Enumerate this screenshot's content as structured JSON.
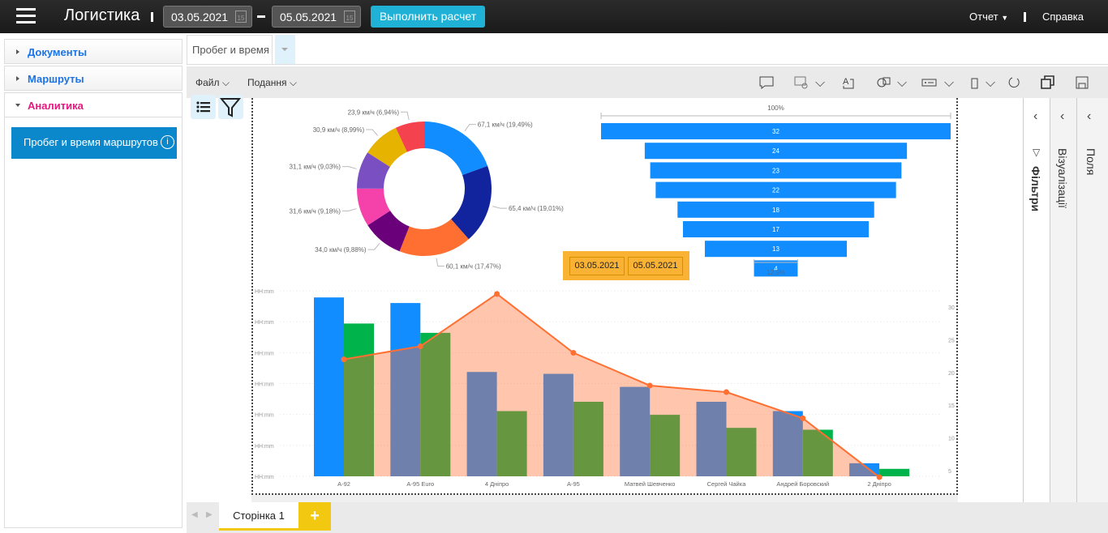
{
  "header": {
    "title": "Логистика",
    "date_from": "03.05.2021",
    "date_to": "05.05.2021",
    "calendar_day": "15",
    "run_button": "Выполнить расчет",
    "report_menu": "Отчет",
    "help": "Справка"
  },
  "sidebar": {
    "items": [
      {
        "label": "Документы"
      },
      {
        "label": "Маршруты"
      },
      {
        "label": "Аналитика"
      }
    ],
    "active_link": "Пробег и время маршрутов",
    "info_icon": "i"
  },
  "tabs": {
    "active": "Пробег и время"
  },
  "toolbar": {
    "file": "Файл",
    "view": "Подання"
  },
  "panes": {
    "filters": "Фільтри",
    "visuals": "Візуалізації",
    "fields": "Поля"
  },
  "date_slicer": {
    "from": "03.05.2021",
    "to": "05.05.2021"
  },
  "pages": {
    "active": "Сторінка 1",
    "add": "+"
  },
  "colors": {
    "accent": "#1fb2d6",
    "nav_active": "#0b88cc",
    "analytics": "#e5187f",
    "page_tab": "#f2c811"
  },
  "chart_data": [
    {
      "type": "pie",
      "subtype": "donut",
      "slices": [
        {
          "label": "67,1 км/ч (19,49%)",
          "value": 67.1,
          "color": "#118DFF"
        },
        {
          "label": "65,4 км/ч (19,01%)",
          "value": 65.4,
          "color": "#12239E"
        },
        {
          "label": "60,1 км/ч (17,47%)",
          "value": 60.1,
          "color": "#FF6F31"
        },
        {
          "label": "34,0 км/ч (9,88%)",
          "value": 34.0,
          "color": "#6B007B"
        },
        {
          "label": "31,6 км/ч (9,18%)",
          "value": 31.6,
          "color": "#F542AB"
        },
        {
          "label": "31,1 км/ч (9,03%)",
          "value": 31.1,
          "color": "#7A4FC2"
        },
        {
          "label": "30,9 км/ч (8,99%)",
          "value": 30.9,
          "color": "#E6B400"
        },
        {
          "label": "23,9 км/ч (6,94%)",
          "value": 23.9,
          "color": "#F5424F"
        }
      ]
    },
    {
      "type": "bar",
      "subtype": "funnel",
      "values": [
        32,
        24,
        23,
        22,
        18,
        17,
        13,
        4
      ],
      "labels": [
        "32",
        "24",
        "23",
        "22",
        "18",
        "17",
        "13",
        "4"
      ],
      "top_label": "100%",
      "bottom_label": "12,5%",
      "color": "#118DFF"
    },
    {
      "type": "bar",
      "subtype": "combo-column-line-area",
      "categories": [
        "A-92",
        "A-95 Euro",
        "4 Дніпро",
        "A-95",
        "Матвей Шевченко",
        "Сергей Чайка",
        "Андрей Боровский",
        "2 Дніпро"
      ],
      "left_axis_ticks": [
        "HH:mm",
        "HH:mm",
        "HH:mm",
        "HH:mm",
        "HH:mm",
        "HH:mm",
        "HH:mm"
      ],
      "right_axis_ticks": [
        "30",
        "25",
        "20",
        "15",
        "10",
        "5"
      ],
      "right_ylim": [
        4,
        32
      ],
      "series": [
        {
          "name": "blue",
          "type": "column",
          "color": "#118DFF",
          "values": [
            96,
            93,
            56,
            55,
            48,
            40,
            35,
            7
          ]
        },
        {
          "name": "green",
          "type": "column",
          "color": "#00B34A",
          "values": [
            82,
            77,
            35,
            40,
            33,
            26,
            25,
            4
          ]
        },
        {
          "name": "line",
          "type": "line-area",
          "axis": "right",
          "color": "#FF6F31",
          "values": [
            22,
            24,
            32,
            23,
            18,
            17,
            13,
            4
          ]
        }
      ]
    }
  ]
}
